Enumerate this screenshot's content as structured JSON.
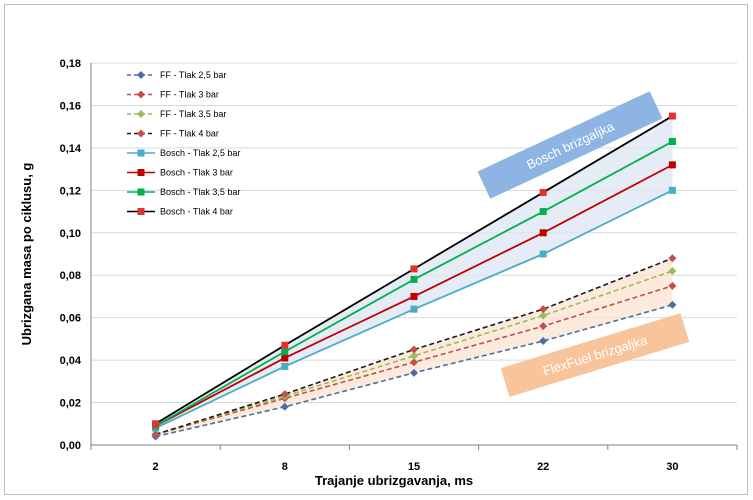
{
  "chart_data": {
    "type": "line",
    "x": [
      2,
      8,
      15,
      22,
      30
    ],
    "xlabel": "Trajanje ubrizgavanja, ms",
    "ylabel": "Ubrizgana masa po ciklusu, g",
    "ylim": [
      0,
      0.18
    ],
    "yticks": [
      "0,00",
      "0,02",
      "0,04",
      "0,06",
      "0,08",
      "0,10",
      "0,12",
      "0,14",
      "0,16",
      "0,18"
    ],
    "xticks": [
      "2",
      "8",
      "15",
      "22",
      "30"
    ],
    "grid": true,
    "legend_position": "top-left",
    "series": [
      {
        "name": "FF - Tlak 2,5 bar",
        "values": [
          0.004,
          0.018,
          0.034,
          0.049,
          0.066
        ],
        "color": "#4a6fa5",
        "dash": true,
        "marker": "diamond"
      },
      {
        "name": "FF - Tlak 3 bar",
        "values": [
          0.005,
          0.022,
          0.039,
          0.056,
          0.075
        ],
        "color": "#c0504d",
        "dash": true,
        "marker": "diamond"
      },
      {
        "name": "FF - Tlak 3,5 bar",
        "values": [
          0.005,
          0.023,
          0.042,
          0.061,
          0.082
        ],
        "color": "#9bbb59",
        "dash": true,
        "marker": "diamond"
      },
      {
        "name": "FF - Tlak 4 bar",
        "values": [
          0.005,
          0.024,
          0.045,
          0.064,
          0.088
        ],
        "color": "#1a1a1a",
        "dash": true,
        "marker": "diamond"
      },
      {
        "name": "Bosch - Tlak 2,5 bar",
        "values": [
          0.008,
          0.037,
          0.064,
          0.09,
          0.12
        ],
        "color": "#4bacc6",
        "dash": false,
        "marker": "square"
      },
      {
        "name": "Bosch - Tlak 3 bar",
        "values": [
          0.009,
          0.041,
          0.07,
          0.1,
          0.132
        ],
        "color": "#c00000",
        "dash": false,
        "marker": "square"
      },
      {
        "name": "Bosch - Tlak 3,5 bar",
        "values": [
          0.009,
          0.044,
          0.078,
          0.11,
          0.143
        ],
        "color": "#00b050",
        "dash": false,
        "marker": "square"
      },
      {
        "name": "Bosch - Tlak 4 bar",
        "values": [
          0.01,
          0.047,
          0.083,
          0.119,
          0.155
        ],
        "color": "#000000",
        "dash": false,
        "marker": "square"
      }
    ],
    "annotations": [
      {
        "text": "Bosch brizgaljka",
        "color": "#8eb4e3"
      },
      {
        "text": "FlexFuel brizgaljka",
        "color": "#f8c49c"
      }
    ],
    "bands": [
      {
        "between": [
          "Bosch - Tlak 2,5 bar",
          "Bosch - Tlak 4 bar"
        ],
        "color": "#dce6f2"
      },
      {
        "between": [
          "FF - Tlak 2,5 bar",
          "FF - Tlak 4 bar"
        ],
        "color": "#fbe3d2"
      }
    ]
  }
}
